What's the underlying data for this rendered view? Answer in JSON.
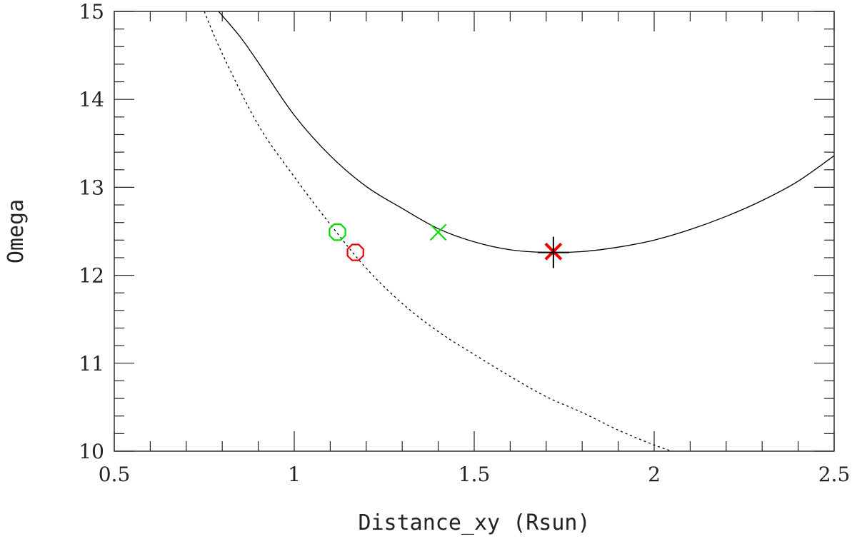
{
  "chart_data": {
    "type": "line",
    "xlabel": "Distance_xy (Rsun)",
    "ylabel": "Omega",
    "xlim": [
      0.5,
      2.5
    ],
    "ylim": [
      10,
      15
    ],
    "x_ticks": [
      0.5,
      1,
      1.5,
      2,
      2.5
    ],
    "x_tick_labels": [
      "0.5",
      "1",
      "1.5",
      "2",
      "2.5"
    ],
    "y_ticks": [
      10,
      11,
      12,
      13,
      14,
      15
    ],
    "y_tick_labels": [
      "10",
      "11",
      "12",
      "13",
      "14",
      "15"
    ],
    "x_minor_step": 0.1,
    "y_minor_step": 0.2,
    "grid": false,
    "series": [
      {
        "style": "solid",
        "color": "#000000",
        "x": [
          0.79,
          0.85,
          0.9,
          1.0,
          1.1,
          1.2,
          1.3,
          1.4,
          1.5,
          1.6,
          1.7,
          1.8,
          1.9,
          2.0,
          2.1,
          2.2,
          2.3,
          2.4,
          2.5
        ],
        "y": [
          15.0,
          14.71,
          14.42,
          13.82,
          13.36,
          13.01,
          12.76,
          12.53,
          12.38,
          12.29,
          12.26,
          12.27,
          12.32,
          12.4,
          12.52,
          12.67,
          12.85,
          13.07,
          13.36
        ]
      },
      {
        "style": "dotted",
        "color": "#000000",
        "x": [
          0.75,
          0.8,
          0.9,
          1.0,
          1.1,
          1.2,
          1.3,
          1.4,
          1.5,
          1.6,
          1.7,
          1.8,
          1.9,
          2.0,
          2.05
        ],
        "y": [
          15.0,
          14.52,
          13.71,
          13.12,
          12.58,
          12.08,
          11.68,
          11.36,
          11.1,
          10.85,
          10.62,
          10.44,
          10.24,
          10.07,
          10.0
        ]
      }
    ],
    "markers": [
      {
        "shape": "circle",
        "color": "#00dd00",
        "x": 1.12,
        "y": 12.49
      },
      {
        "shape": "circle",
        "color": "#ee0000",
        "x": 1.17,
        "y": 12.26
      },
      {
        "shape": "x",
        "color": "#00dd00",
        "x": 1.4,
        "y": 12.49
      },
      {
        "shape": "x",
        "color": "#ee0000",
        "x": 1.72,
        "y": 12.27
      },
      {
        "shape": "plus",
        "color": "#000000",
        "x": 1.72,
        "y": 12.26
      }
    ]
  }
}
